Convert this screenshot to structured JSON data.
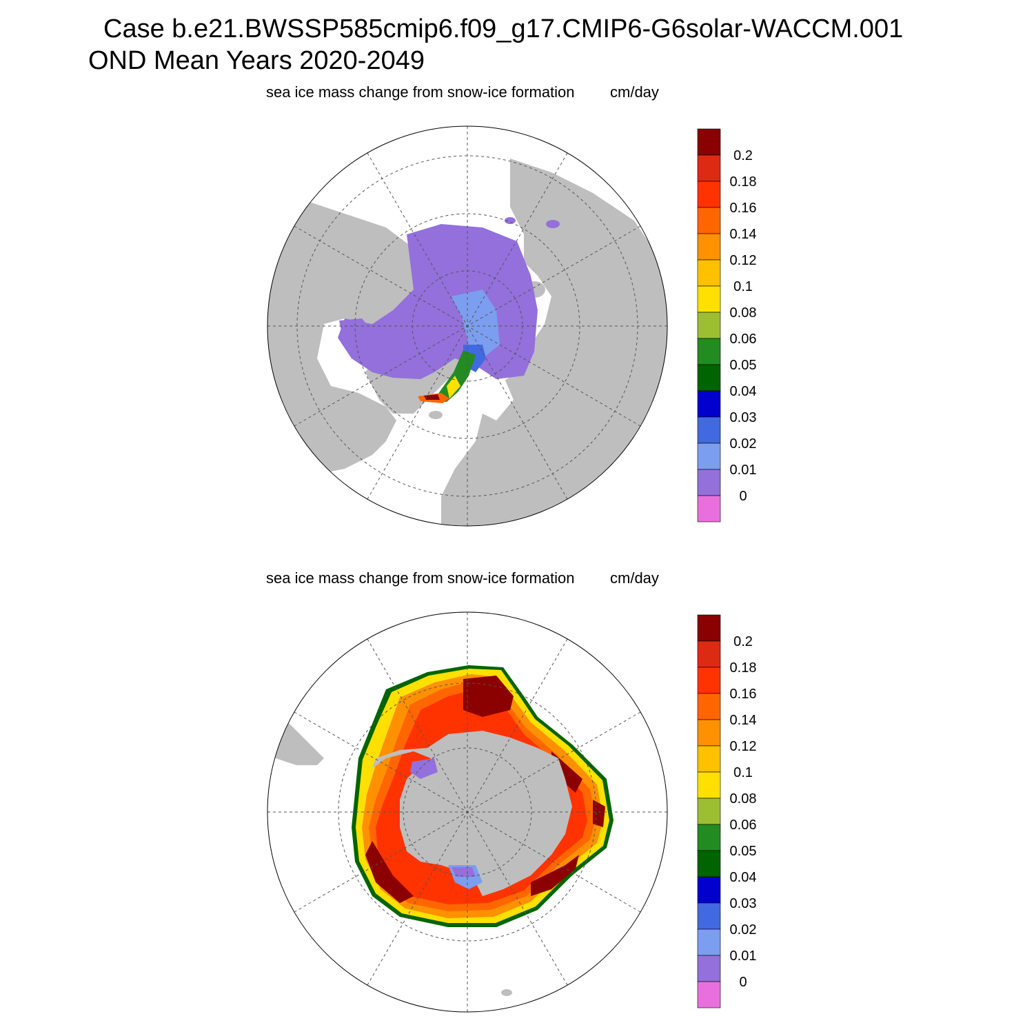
{
  "title": {
    "line1": "Case b.e21.BWSSP585cmip6.f09_g17.CMIP6-G6solar-WACCM.001",
    "line2": "OND Mean   Years 2020-2049"
  },
  "panels": [
    {
      "id": "north",
      "variable": "sea ice mass change from snow-ice formation",
      "units": "cm/day"
    },
    {
      "id": "south",
      "variable": "sea ice mass change from snow-ice formation",
      "units": "cm/day"
    }
  ],
  "colorbar": {
    "labels": [
      "0.2",
      "0.18",
      "0.16",
      "0.14",
      "0.12",
      "0.1",
      "0.08",
      "0.06",
      "0.05",
      "0.04",
      "0.03",
      "0.02",
      "0.01",
      "0"
    ],
    "colors": [
      "#8b0000",
      "#dd2a12",
      "#ff3300",
      "#ff6600",
      "#ff9000",
      "#ffc000",
      "#ffe000",
      "#9bbf30",
      "#228b22",
      "#006400",
      "#0000cd",
      "#4169e1",
      "#7b9ef0",
      "#9370db",
      "#e86fdd"
    ]
  },
  "styles": {
    "land": "#bebebe",
    "ocean": "#ffffff",
    "grid": "#555555"
  }
}
